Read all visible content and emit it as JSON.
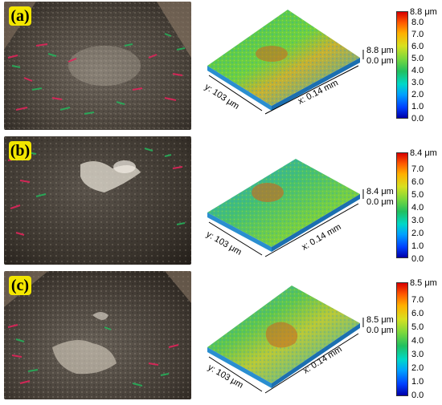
{
  "panels": [
    {
      "label": "(a)",
      "height_label": "8.8 μm",
      "zero_label": "0.0 μm",
      "y_axis": "y: 103 μm",
      "x_axis": "x: 0.14 mm",
      "colorbar_max_label": "8.8 μm",
      "colorbar_ticks": [
        "8.0",
        "7.0",
        "6.0",
        "5.0",
        "4.0",
        "3.0",
        "2.0",
        "1.0",
        "0.0"
      ]
    },
    {
      "label": "(b)",
      "height_label": "8.4 μm",
      "zero_label": "0.0 μm",
      "y_axis": "y: 103 μm",
      "x_axis": "x: 0.14 mm",
      "colorbar_max_label": "8.4 μm",
      "colorbar_ticks": [
        "7.0",
        "6.0",
        "5.0",
        "4.0",
        "3.0",
        "2.0",
        "1.0",
        "0.0"
      ]
    },
    {
      "label": "(c)",
      "height_label": "8.5 μm",
      "zero_label": "0.0 μm",
      "y_axis": "y: 103 μm",
      "x_axis": "x: 0.14 mm",
      "colorbar_max_label": "8.5 μm",
      "colorbar_ticks": [
        "7.0",
        "6.0",
        "5.0",
        "4.0",
        "3.0",
        "2.0",
        "1.0",
        "0.0"
      ]
    }
  ],
  "colors": {
    "label_bg": "#f2e600",
    "surface_base": "#2fb35a",
    "surface_high": "#e0a020",
    "photo_bg": "#3a342d"
  }
}
